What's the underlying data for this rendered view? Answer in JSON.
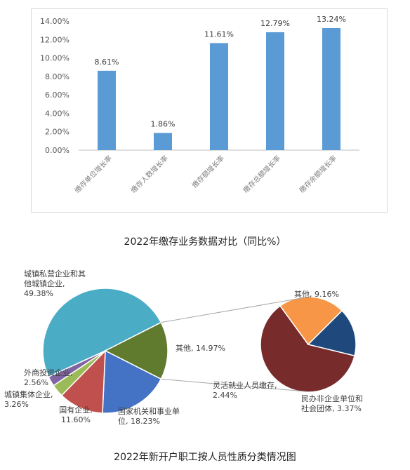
{
  "chart_data": [
    {
      "type": "bar",
      "title": "2022年缴存业务数据对比（同比%）",
      "categories": [
        "缴存单位增长率",
        "缴存人数增长率",
        "缴存额增长率",
        "缴存总额增长率",
        "缴存余额增长率"
      ],
      "values": [
        8.61,
        1.86,
        11.61,
        12.79,
        13.24
      ],
      "value_labels": [
        "8.61%",
        "1.86%",
        "11.61%",
        "12.79%",
        "13.24%"
      ],
      "ylim": [
        0,
        14
      ],
      "yticks": [
        "0.00%",
        "2.00%",
        "4.00%",
        "6.00%",
        "8.00%",
        "10.00%",
        "12.00%",
        "14.00%"
      ],
      "grid": false,
      "color": "#5b9bd5"
    },
    {
      "type": "pie",
      "title": "2022年新开户职工按人员性质分类情况图",
      "main_slices": [
        {
          "label": [
            "城镇私营企业和其",
            "他城镇企业,",
            "49.38%"
          ],
          "value": 49.38,
          "color": "#4bacc6"
        },
        {
          "label": [
            "其他, 14.97%"
          ],
          "value": 14.97,
          "color": "#607a2e"
        },
        {
          "label": [
            "国家机关和事业单",
            "位, 18.23%"
          ],
          "value": 18.23,
          "color": "#4472c4"
        },
        {
          "label": [
            "国有企业,",
            "11.60%"
          ],
          "value": 11.6,
          "color": "#c0504d"
        },
        {
          "label": [
            "城镇集体企业,",
            "3.26%"
          ],
          "value": 3.26,
          "color": "#9bbb59"
        },
        {
          "label": [
            "外商投资企业,",
            "2.56%"
          ],
          "value": 2.56,
          "color": "#8064a2"
        }
      ],
      "secondary_slices": [
        {
          "label": [
            "其他, 9.16%"
          ],
          "value": 9.16,
          "color": "#772b2b"
        },
        {
          "label": [
            "民办非企业单位和",
            "社会团体, 3.37%"
          ],
          "value": 3.37,
          "color": "#f79646"
        },
        {
          "label": [
            "灵活就业人员缴存,",
            "2.44%"
          ],
          "value": 2.44,
          "color": "#1f497d"
        }
      ]
    }
  ]
}
